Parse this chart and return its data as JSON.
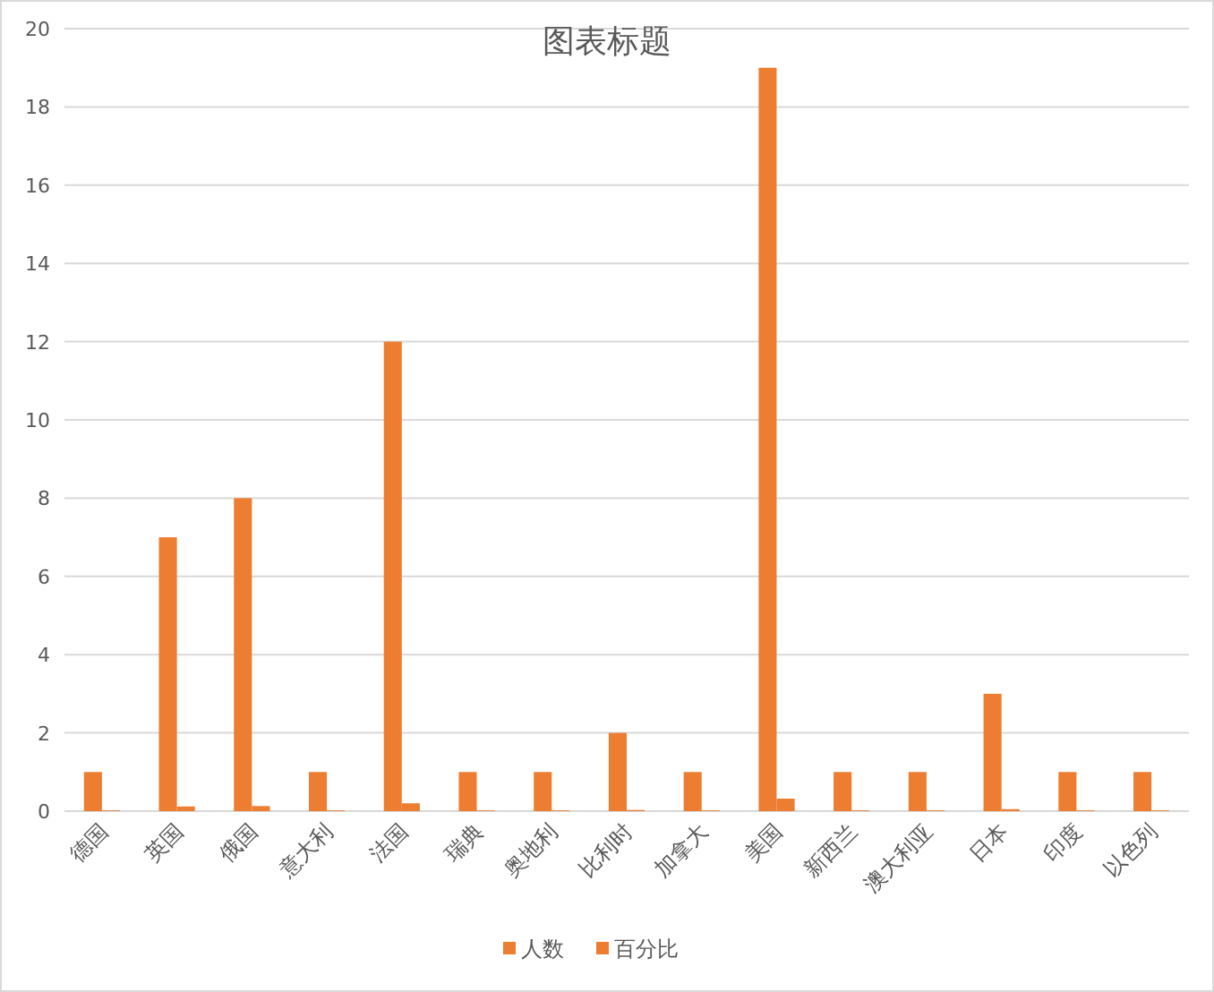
{
  "chart_data": {
    "type": "bar",
    "title": "图表标题",
    "categories": [
      "德国",
      "英国",
      "俄国",
      "意大利",
      "法国",
      "瑞典",
      "奥地利",
      "比利时",
      "加拿大",
      "美国",
      "新西兰",
      "澳大利亚",
      "日本",
      "印度",
      "以色列"
    ],
    "series": [
      {
        "name": "人数",
        "color": "#ed7d31",
        "values": [
          1,
          7,
          8,
          1,
          12,
          1,
          1,
          2,
          1,
          19,
          1,
          1,
          3,
          1,
          1
        ]
      },
      {
        "name": "百分比",
        "color": "#ed7d31",
        "values": [
          0.02,
          0.12,
          0.13,
          0.02,
          0.2,
          0.02,
          0.02,
          0.03,
          0.02,
          0.32,
          0.02,
          0.02,
          0.05,
          0.02,
          0.02
        ]
      }
    ],
    "ylim": [
      0,
      20
    ],
    "yticks": [
      0,
      2,
      4,
      6,
      8,
      10,
      12,
      14,
      16,
      18,
      20
    ],
    "grid": "y",
    "legend": "bottom"
  }
}
